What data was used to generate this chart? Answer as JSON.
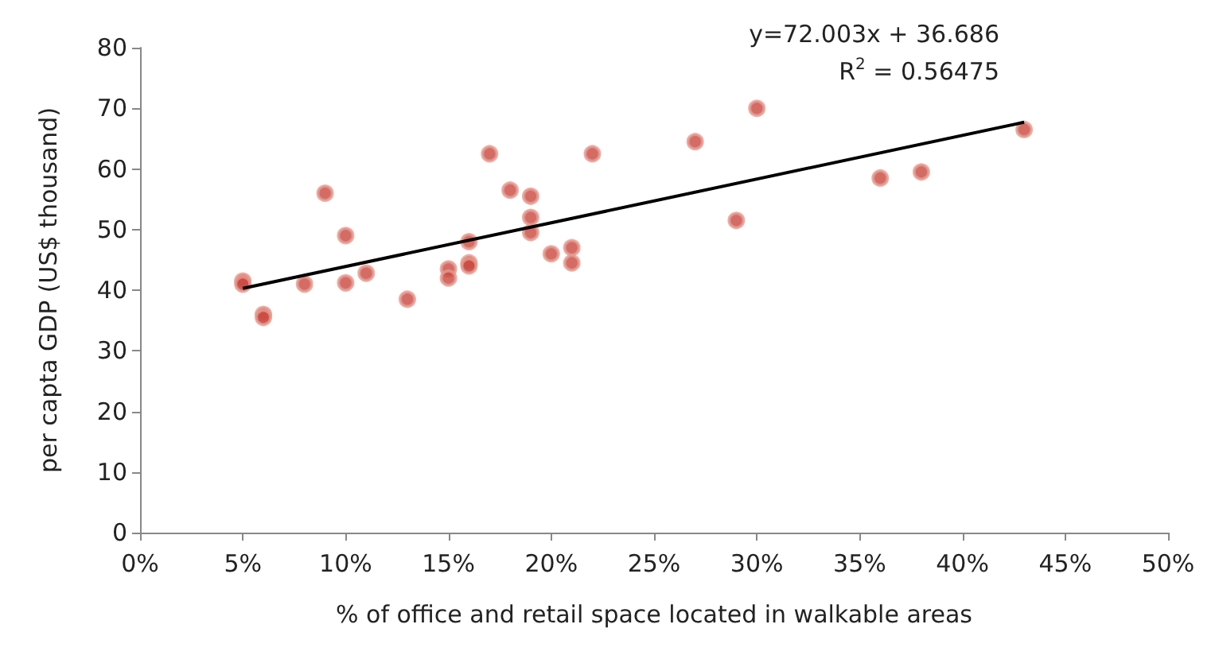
{
  "chart_data": {
    "type": "scatter",
    "xlabel": "% of office and retail space located in walkable areas",
    "ylabel": "per capta GDP (US$ thousand)",
    "xlim": [
      0,
      0.5
    ],
    "xticks": [
      {
        "value": 0,
        "label": "0%"
      },
      {
        "value": 0.05,
        "label": "5%"
      },
      {
        "value": 0.1,
        "label": "10%"
      },
      {
        "value": 0.15,
        "label": "15%"
      },
      {
        "value": 0.2,
        "label": "20%"
      },
      {
        "value": 0.25,
        "label": "25%"
      },
      {
        "value": 0.3,
        "label": "30%"
      },
      {
        "value": 0.35,
        "label": "35%"
      },
      {
        "value": 0.4,
        "label": "40%"
      },
      {
        "value": 0.45,
        "label": "45%"
      },
      {
        "value": 0.5,
        "label": "50%"
      }
    ],
    "ylim": [
      0,
      80
    ],
    "yticks": [
      0,
      10,
      20,
      30,
      40,
      50,
      60,
      70,
      80
    ],
    "grid": false,
    "marker": "circle",
    "annotations": [
      "y=72.003x + 36.686",
      "R$^{2}$ = 0.56475"
    ],
    "series": [
      {
        "color": "#c9463d",
        "x": [
          0.05,
          0.05,
          0.06,
          0.06,
          0.08,
          0.09,
          0.1,
          0.1,
          0.11,
          0.13,
          0.15,
          0.15,
          0.16,
          0.16,
          0.16,
          0.17,
          0.18,
          0.19,
          0.19,
          0.19,
          0.2,
          0.21,
          0.21,
          0.22,
          0.27,
          0.29,
          0.3,
          0.36,
          0.38,
          0.43
        ],
        "values": [
          41.5,
          41,
          36,
          35.5,
          41,
          56,
          49,
          41.2,
          42.8,
          38.5,
          43.5,
          42,
          48,
          44.5,
          44,
          62.5,
          56.5,
          55.5,
          52,
          49.5,
          46,
          47,
          44.5,
          62.5,
          64.5,
          51.5,
          70,
          58.5,
          59.5,
          66.5
        ]
      },
      {
        "type": "line",
        "marker": "none",
        "color": "#000000",
        "x": [
          0.05,
          0.43
        ],
        "values": [
          40.3,
          67.7
        ]
      }
    ]
  }
}
